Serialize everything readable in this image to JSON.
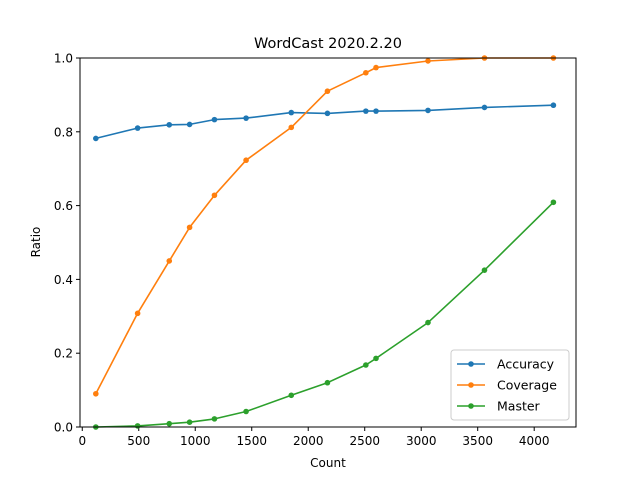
{
  "chart_data": {
    "type": "line",
    "title": "WordCast 2020.2.20",
    "xlabel": "Count",
    "ylabel": "Ratio",
    "xlim": [
      -20,
      4370
    ],
    "ylim": [
      0,
      1.0
    ],
    "xticks": [
      0,
      500,
      1000,
      1500,
      2000,
      2500,
      3000,
      3500,
      4000
    ],
    "yticks": [
      0.0,
      0.2,
      0.4,
      0.6,
      0.8,
      1.0
    ],
    "ytick_labels": [
      "0.0",
      "0.2",
      "0.4",
      "0.6",
      "0.8",
      "1.0"
    ],
    "grid": false,
    "legend_position": "lower-right",
    "x": [
      120,
      490,
      770,
      950,
      1170,
      1450,
      1850,
      2170,
      2510,
      2600,
      3060,
      3560,
      4170
    ],
    "series": [
      {
        "name": "Accuracy",
        "color": "#1f77b4",
        "values": [
          0.782,
          0.81,
          0.819,
          0.82,
          0.833,
          0.837,
          0.852,
          0.85,
          0.856,
          0.856,
          0.858,
          0.866,
          0.872
        ]
      },
      {
        "name": "Coverage",
        "color": "#ff7f0e",
        "values": [
          0.09,
          0.308,
          0.45,
          0.541,
          0.628,
          0.723,
          0.812,
          0.91,
          0.96,
          0.974,
          0.992,
          1.0,
          1.0
        ]
      },
      {
        "name": "Master",
        "color": "#2ca02c",
        "values": [
          0.0,
          0.003,
          0.009,
          0.013,
          0.022,
          0.042,
          0.086,
          0.12,
          0.168,
          0.186,
          0.283,
          0.425,
          0.609
        ]
      }
    ]
  }
}
